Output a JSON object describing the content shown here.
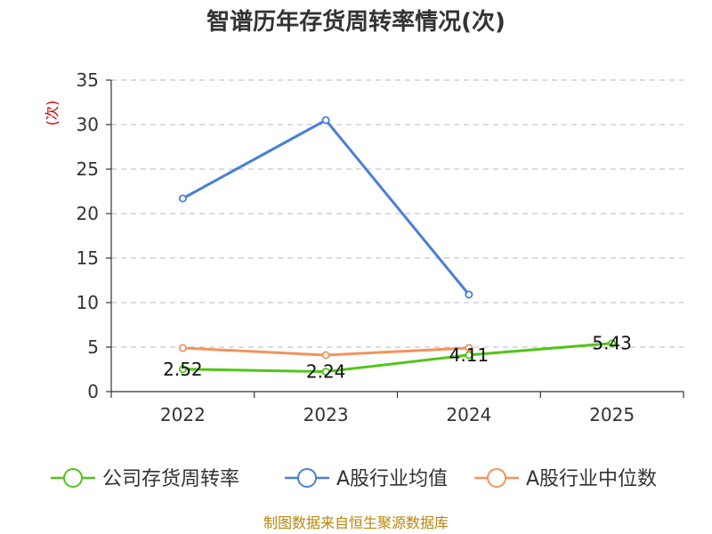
{
  "chart_data": {
    "type": "line",
    "title": "智谱历年存货周转率情况(次)",
    "ylabel_unit": "(次)",
    "categories": [
      "2022",
      "2023",
      "2024",
      "2025"
    ],
    "ylim": [
      0,
      35
    ],
    "yticks": [
      0,
      5,
      10,
      15,
      20,
      25,
      30,
      35
    ],
    "grid": true,
    "legend_position": "bottom",
    "series": [
      {
        "name": "公司存货周转率",
        "color": "#52c41a",
        "values": [
          2.52,
          2.24,
          4.11,
          5.43
        ],
        "labels": [
          "2.52",
          "2.24",
          "4.11",
          "5.43"
        ]
      },
      {
        "name": "A股行业均值",
        "color": "#4a7fd8",
        "values": [
          21.7,
          30.5,
          10.9,
          null
        ]
      },
      {
        "name": "A股行业中位数",
        "color": "#f5925a",
        "values": [
          4.9,
          4.1,
          4.9,
          null
        ]
      }
    ],
    "source": "制图数据来自恒生聚源数据库"
  }
}
